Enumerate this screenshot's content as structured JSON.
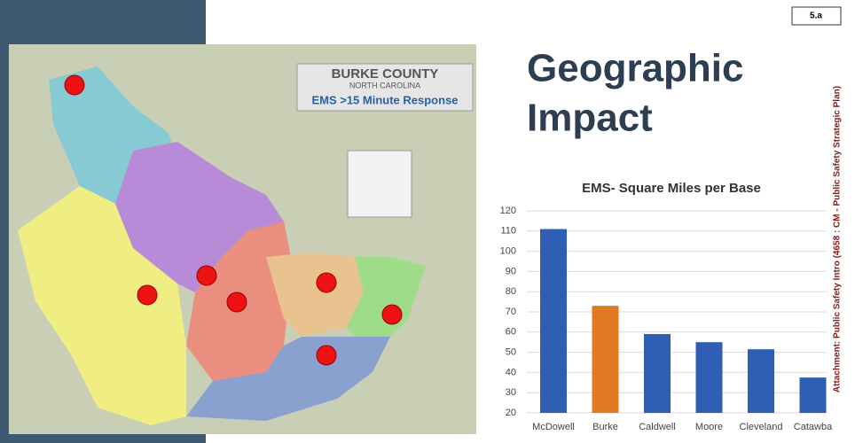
{
  "tag": "5.a",
  "heading": [
    "Geographic",
    "Impact"
  ],
  "map": {
    "title": "BURKE COUNTY",
    "subtitle": "NORTH CAROLINA",
    "caption": "EMS >15 Minute Response"
  },
  "attachment": "Attachment: Public Safety Intro  (4658 : CM - Public Safety Strategic Plan)",
  "chart_data": {
    "type": "bar",
    "title": "EMS- Square Miles per Base",
    "categories": [
      "McDowell",
      "Burke",
      "Caldwell",
      "Moore",
      "Cleveland",
      "Catawba"
    ],
    "values": [
      111,
      73,
      59,
      55,
      51.5,
      37.5
    ],
    "colors": [
      "#2f5fb5",
      "#e07a22",
      "#2f5fb5",
      "#2f5fb5",
      "#2f5fb5",
      "#2f5fb5"
    ],
    "ylim": [
      20,
      120
    ],
    "yticks": [
      20,
      30,
      40,
      50,
      60,
      70,
      80,
      90,
      100,
      110,
      120
    ],
    "grid": true
  }
}
